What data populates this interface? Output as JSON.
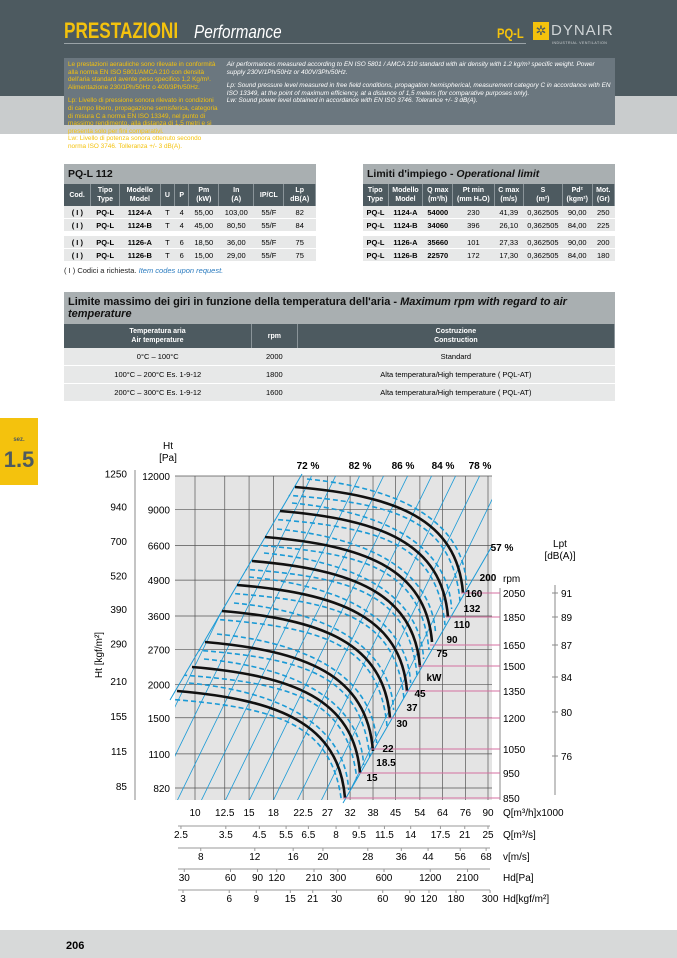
{
  "header": {
    "title": "PRESTAZIONI",
    "subtitle": "Performance",
    "model": "PQ-L",
    "brand": "DYNAIR",
    "brand_tagline": "INDUSTRIAL VENTILATION"
  },
  "info": {
    "it": [
      "Le prestazioni aerauliche sono rilevate in conformità alla norma EN ISO 5801/AMCA 210 con densità dell'aria standard avente peso  specifico 1,2 Kg/m³. Alimentazione 230/1Ph/50Hz o 400/3Ph/50Hz.",
      "Lp: Livello di pressione sonora rilevato in condizioni di campo libero, propagazione semisferica, categoria di misura C a norma EN ISO 13349, nel punto di massimo rendimento, alla distanza di 1,5 metri e si presenta solo per fini comparativi.",
      "Lw: Livello di potenza sonora ottenuto secondo norma ISO 3746. Tolleranza +/- 3 dB(A)."
    ],
    "en": [
      "Air performances measured according to EN ISO 5801 / AMCA 210 standard with air density with 1.2 kg/m³ specific weight. Power supply 230V/1Ph/50Hz or 400V/3Ph/50Hz.",
      "Lp: Sound pressure level measured in free field conditions, propagation hemispherical, measurement category C in accordance with EN ISO 13349, at the point of maximum efficiency, at a distance of 1,5 meters (for comparative purposes only).",
      "Lw: Sound power level obtained in accordance with EN ISO 3746. Tolerance +/- 3 dB(A)."
    ]
  },
  "table1": {
    "title": "PQ-L 112",
    "headers": [
      "Cod.",
      "Tipo\nType",
      "Modello\nModel",
      "U",
      "P",
      "Pm\n(kW)",
      "In\n(A)",
      "IP/CL",
      "Lp\ndB(A)"
    ],
    "rows": [
      [
        "( I )",
        "PQ-L",
        "1124-A",
        "T",
        "4",
        "55,00",
        "103,00",
        "55/F",
        "82"
      ],
      [
        "( I )",
        "PQ-L",
        "1124-B",
        "T",
        "4",
        "45,00",
        "80,50",
        "55/F",
        "84"
      ],
      [
        "( I )",
        "PQ-L",
        "1126-A",
        "T",
        "6",
        "18,50",
        "36,00",
        "55/F",
        "75"
      ],
      [
        "( I )",
        "PQ-L",
        "1126-B",
        "T",
        "6",
        "15,00",
        "29,00",
        "55/F",
        "75"
      ]
    ],
    "note_it": "( I ) Codici a richiesta.",
    "note_en": "Item codes upon request."
  },
  "table2": {
    "title_it": "Limiti d'impiego - ",
    "title_en": "Operational limit",
    "headers": [
      "Tipo\nType",
      "Modello\nModel",
      "Q max\n(m³/h)",
      "Pt min\n(mm H₂O)",
      "C max\n(m/s)",
      "S\n(m²)",
      "Pd²\n(kgm²)",
      "Mot.\n(Gr)"
    ],
    "rows": [
      [
        "PQ-L",
        "1124-A",
        "54000",
        "230",
        "41,39",
        "0,362505",
        "90,00",
        "250"
      ],
      [
        "PQ-L",
        "1124-B",
        "34060",
        "396",
        "26,10",
        "0,362505",
        "84,00",
        "225"
      ],
      [
        "PQ-L",
        "1126-A",
        "35660",
        "101",
        "27,33",
        "0,362505",
        "90,00",
        "200"
      ],
      [
        "PQ-L",
        "1126-B",
        "22570",
        "172",
        "17,30",
        "0,362505",
        "84,00",
        "180"
      ]
    ]
  },
  "table3": {
    "title_it": "Limite massimo dei giri in funzione della temperatura dell'aria - ",
    "title_en": "Maximum rpm with regard to air temperature",
    "headers": [
      "Temperatura aria\nAir temperature",
      "rpm",
      "Costruzione\nConstruction"
    ],
    "rows": [
      [
        "0°C – 100°C",
        "2000",
        "Standard"
      ],
      [
        "100°C – 200°C Es. 1-9-12",
        "1800",
        "Alta temperatura/High temperature ( PQL-AT)"
      ],
      [
        "200°C – 300°C Es. 1-9-12",
        "1600",
        "Alta temperatura/High temperature ( PQL-AT)"
      ]
    ]
  },
  "section": {
    "label": "sez.",
    "number": "1.5"
  },
  "chart_data": {
    "type": "line",
    "scale": "log-log",
    "grid": true,
    "ylabel": "Ht\n[Pa]",
    "ylabel2": "Ht [kgf/m²]",
    "y_ticks_pa": [
      12000,
      9000,
      6600,
      4900,
      3600,
      2700,
      2000,
      1500,
      1100,
      820
    ],
    "y_ticks_kgf": [
      1250,
      940,
      700,
      520,
      390,
      290,
      210,
      155,
      115,
      85
    ],
    "x_axes": [
      {
        "label": "Q[m³/h]x1000",
        "ticks": [
          10,
          12.5,
          15,
          18,
          22.5,
          27,
          32,
          38,
          45,
          54,
          64,
          76,
          90
        ]
      },
      {
        "label": "Q[m³/s]",
        "ticks": [
          2.5,
          3.5,
          4.5,
          5.5,
          6.5,
          8,
          9.5,
          11.5,
          14,
          17.5,
          21,
          25
        ]
      },
      {
        "label": "v[m/s]",
        "ticks": [
          8,
          12,
          16,
          20,
          28,
          36,
          44,
          56,
          68
        ]
      },
      {
        "label": "Hd[Pa]",
        "ticks": [
          30,
          60,
          90,
          120,
          210,
          300,
          600,
          1200,
          2100
        ]
      },
      {
        "label": "Hd[kgf/m²]",
        "ticks": [
          3,
          6,
          9,
          15,
          21,
          30,
          60,
          90,
          120,
          180,
          300
        ]
      }
    ],
    "efficiency_labels": [
      "72 %",
      "82 %",
      "86 %",
      "84 %",
      "78 %",
      "57 %"
    ],
    "rpm_label": "rpm",
    "rpm_ticks": [
      2050,
      1850,
      1650,
      1500,
      1350,
      1200,
      1050,
      950,
      850
    ],
    "kw_label": "kW",
    "kw_values": [
      "200",
      "160",
      "132",
      "110",
      "90",
      "75",
      "45",
      "37",
      "30",
      "22",
      "18.5",
      "15"
    ],
    "lpt_label": "Lpt\n[dB(A)]",
    "lpt_ticks": [
      91,
      89,
      87,
      84,
      80,
      76
    ],
    "colors": {
      "curves": "#111111",
      "efficiency": "#1a9ad6",
      "rpm_lines": "#d46fa0",
      "plot_bg": "#e4e4e4"
    }
  },
  "footer": {
    "page": "206"
  }
}
